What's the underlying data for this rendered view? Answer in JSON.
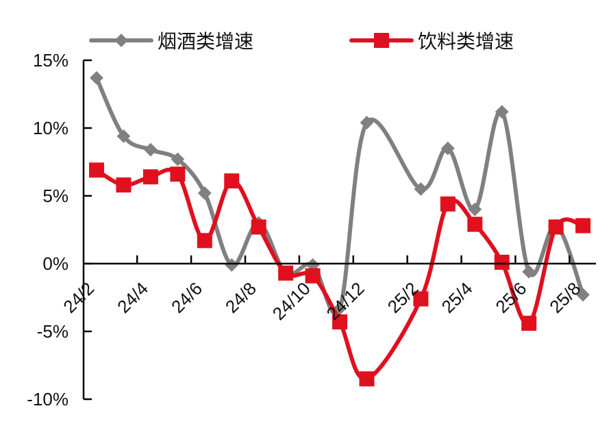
{
  "chart_data": {
    "type": "line",
    "title": "",
    "xlabel": "",
    "ylabel": "",
    "categories": [
      "24/2",
      "24/3",
      "24/4",
      "24/5",
      "24/6",
      "24/7",
      "24/8",
      "24/9",
      "24/10",
      "24/11",
      "24/12",
      "25/1",
      "25/2",
      "25/3",
      "25/4",
      "25/5",
      "25/6",
      "25/7",
      "25/8"
    ],
    "x_tick_labels": [
      "24/2",
      "24/4",
      "24/6",
      "24/8",
      "24/10",
      "24/12",
      "25/2",
      "25/4",
      "25/6",
      "25/8"
    ],
    "y_tick_labels": [
      "15%",
      "10%",
      "5%",
      "0%",
      "-5%",
      "-10%"
    ],
    "y_ticks": [
      15,
      10,
      5,
      0,
      -5,
      -10
    ],
    "ylim": [
      -10,
      15
    ],
    "grid": false,
    "legend_position": "top",
    "series": [
      {
        "name": "烟酒类增速",
        "color": "#808080",
        "marker": "diamond",
        "values": [
          13.7,
          9.4,
          8.4,
          7.7,
          5.2,
          -0.1,
          3.0,
          -0.7,
          -0.1,
          -3.3,
          10.4,
          null,
          5.5,
          8.5,
          4.0,
          11.2,
          -0.6,
          2.8,
          -2.3
        ]
      },
      {
        "name": "饮料类增速",
        "color": "#E0101E",
        "marker": "square",
        "values": [
          6.9,
          5.8,
          6.4,
          6.6,
          1.7,
          6.1,
          2.7,
          -0.7,
          -0.9,
          -4.3,
          -8.5,
          null,
          -2.6,
          4.4,
          2.9,
          0.1,
          -4.4,
          2.7,
          2.8
        ]
      }
    ]
  }
}
